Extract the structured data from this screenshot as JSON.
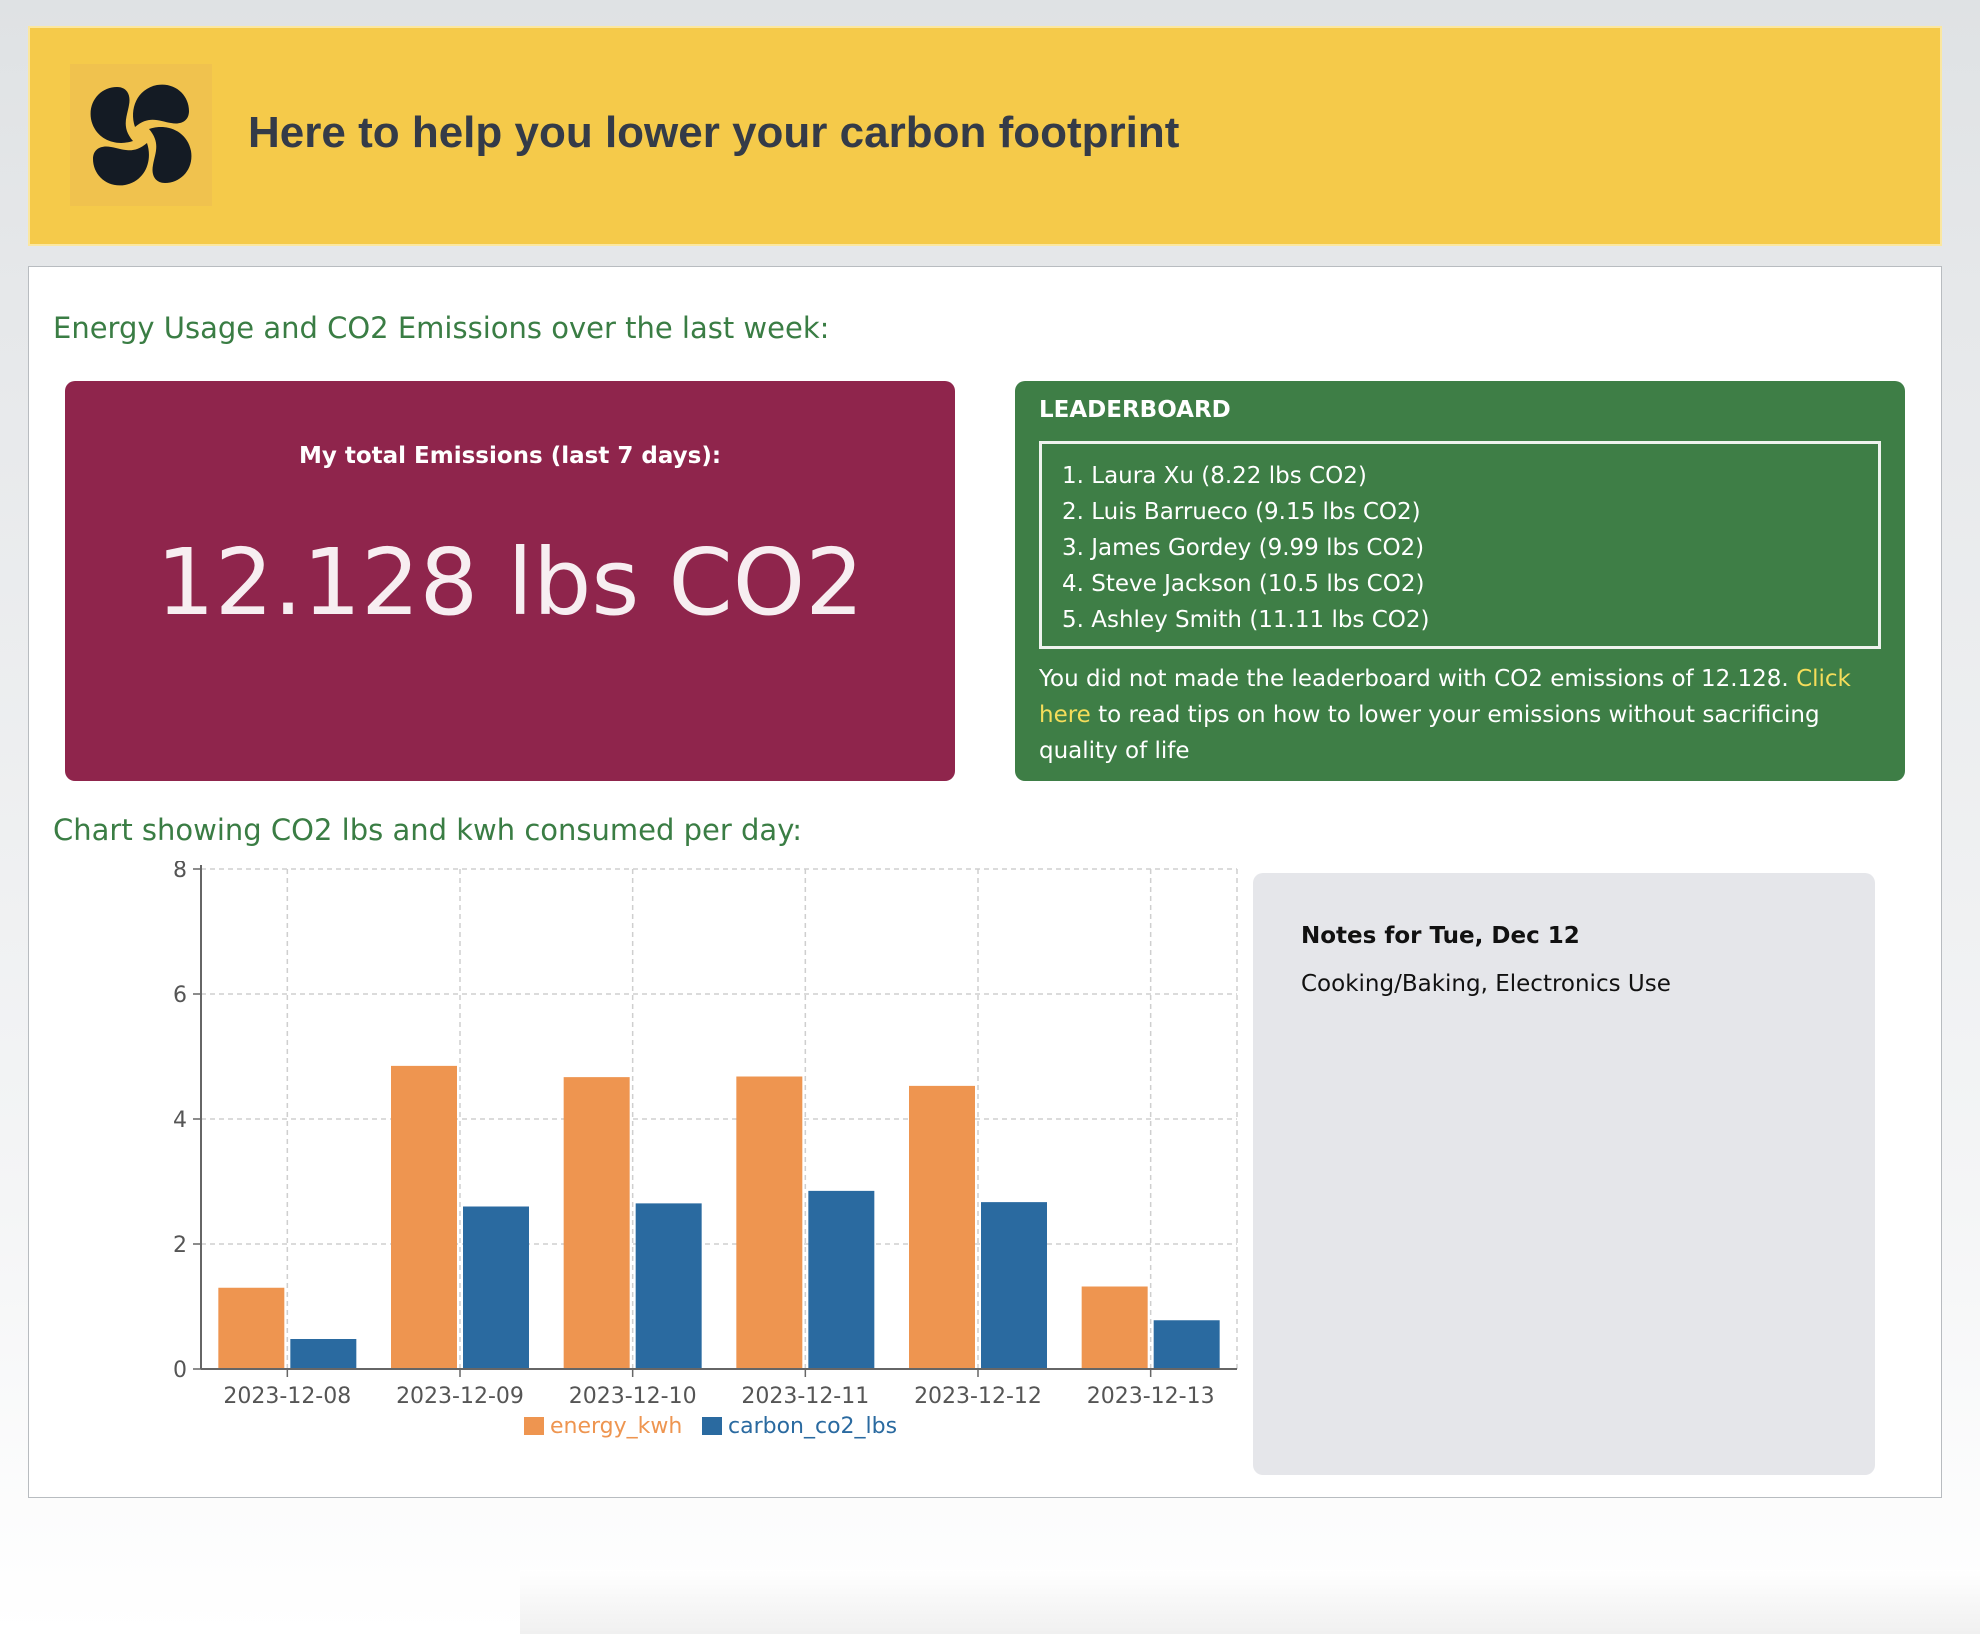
{
  "header": {
    "logo_icon": "pinwheel-logo-icon",
    "title": "Here to help you lower your carbon footprint"
  },
  "main": {
    "section_title": "Energy Usage and CO2 Emissions over the last week:",
    "chart_section_title": "Chart showing CO2 lbs and kwh consumed per day:"
  },
  "emissions": {
    "label": "My total Emissions (last 7 days):",
    "value": "12.128 lbs CO2"
  },
  "leaderboard": {
    "title": "LEADERBOARD",
    "entries": [
      "1. Laura Xu (8.22 lbs CO2)",
      "2. Luis Barrueco (9.15 lbs CO2)",
      "3. James Gordey (9.99 lbs CO2)",
      "4. Steve Jackson (10.5 lbs CO2)",
      "5. Ashley Smith (11.11 lbs CO2)"
    ],
    "message_before": "You did not made the leaderboard with CO2 emissions of 12.128. ",
    "link_text": "Click here",
    "message_after": " to read tips on how to lower your emissions without sacrificing quality of life"
  },
  "notes": {
    "title": "Notes for Tue, Dec 12",
    "text": "Cooking/Baking, Electronics Use"
  },
  "colors": {
    "header_bg": "#f5ca4a",
    "emissions_bg": "#8f254c",
    "leaderboard_bg": "#3e7e46",
    "section_title": "#3a7d44",
    "energy_series": "#ee9550",
    "carbon_series": "#2a6aa0",
    "link": "#f5dd5a"
  },
  "chart_data": {
    "type": "bar",
    "categories": [
      "2023-12-08",
      "2023-12-09",
      "2023-12-10",
      "2023-12-11",
      "2023-12-12",
      "2023-12-13"
    ],
    "series": [
      {
        "name": "energy_kwh",
        "values": [
          1.3,
          4.85,
          4.67,
          4.68,
          4.53,
          1.32
        ],
        "color": "#ee9550"
      },
      {
        "name": "carbon_co2_lbs",
        "values": [
          0.48,
          2.6,
          2.65,
          2.85,
          2.67,
          0.78
        ],
        "color": "#2a6aa0"
      }
    ],
    "yticks": [
      "0",
      "2",
      "4",
      "6",
      "8"
    ],
    "ylim": [
      0,
      8
    ],
    "grid": true,
    "legend": "bottom-center"
  }
}
